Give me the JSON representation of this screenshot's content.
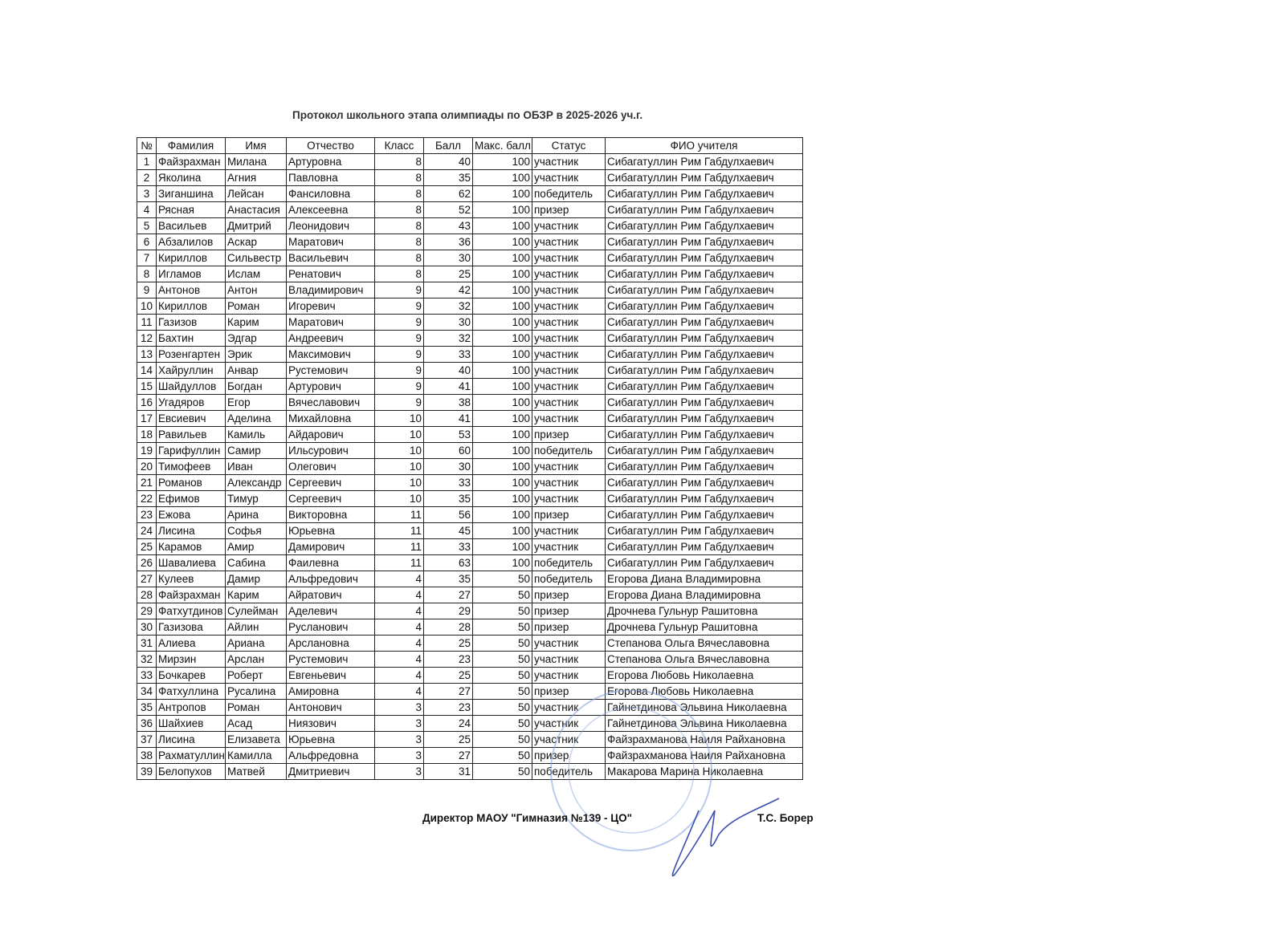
{
  "title": "Протокол школьного этапа олимпиады по ОБЗР в 2025-2026 уч.г.",
  "table": {
    "header": [
      "№",
      "Фамилия",
      "Имя",
      "Отчество",
      "Класс",
      "Балл",
      "Макс. балл",
      "Статус",
      "ФИО учителя"
    ],
    "rows": [
      [
        1,
        "Файзрахман",
        "Милана",
        "Артуровна",
        8,
        40,
        100,
        "участник",
        "Сибагатуллин Рим Габдулхаевич"
      ],
      [
        2,
        "Яколина",
        "Агния",
        "Павловна",
        8,
        35,
        100,
        "участник",
        "Сибагатуллин Рим Габдулхаевич"
      ],
      [
        3,
        "Зиганшина",
        "Лейсан",
        "Фансиловна",
        8,
        62,
        100,
        "победитель",
        "Сибагатуллин Рим Габдулхаевич"
      ],
      [
        4,
        "Рясная",
        "Анастасия",
        "Алексеевна",
        8,
        52,
        100,
        "призер",
        "Сибагатуллин Рим Габдулхаевич"
      ],
      [
        5,
        "Васильев",
        "Дмитрий",
        "Леонидович",
        8,
        43,
        100,
        "участник",
        "Сибагатуллин Рим Габдулхаевич"
      ],
      [
        6,
        "Абзалилов",
        "Аскар",
        "Маратович",
        8,
        36,
        100,
        "участник",
        "Сибагатуллин Рим Габдулхаевич"
      ],
      [
        7,
        "Кириллов",
        "Сильвестр",
        "Васильевич",
        8,
        30,
        100,
        "участник",
        "Сибагатуллин Рим Габдулхаевич"
      ],
      [
        8,
        "Игламов",
        "Ислам",
        "Ренатович",
        8,
        25,
        100,
        "участник",
        "Сибагатуллин Рим Габдулхаевич"
      ],
      [
        9,
        "Антонов",
        "Антон",
        "Владимирович",
        9,
        42,
        100,
        "участник",
        "Сибагатуллин Рим Габдулхаевич"
      ],
      [
        10,
        "Кириллов",
        "Роман",
        "Игоревич",
        9,
        32,
        100,
        "участник",
        "Сибагатуллин Рим Габдулхаевич"
      ],
      [
        11,
        "Газизов",
        "Карим",
        "Маратович",
        9,
        30,
        100,
        "участник",
        "Сибагатуллин Рим Габдулхаевич"
      ],
      [
        12,
        "Бахтин",
        "Эдгар",
        "Андреевич",
        9,
        32,
        100,
        "участник",
        "Сибагатуллин Рим Габдулхаевич"
      ],
      [
        13,
        "Розенгартен",
        "Эрик",
        "Максимович",
        9,
        33,
        100,
        "участник",
        "Сибагатуллин Рим Габдулхаевич"
      ],
      [
        14,
        "Хайруллин",
        "Анвар",
        "Рустемович",
        9,
        40,
        100,
        "участник",
        "Сибагатуллин Рим Габдулхаевич"
      ],
      [
        15,
        "Шайдуллов",
        "Богдан",
        "Артурович",
        9,
        41,
        100,
        "участник",
        "Сибагатуллин Рим Габдулхаевич"
      ],
      [
        16,
        "Угадяров",
        "Егор",
        "Вячеславович",
        9,
        38,
        100,
        "участник",
        "Сибагатуллин Рим Габдулхаевич"
      ],
      [
        17,
        "Евсиевич",
        "Аделина",
        "Михайловна",
        10,
        41,
        100,
        "участник",
        "Сибагатуллин Рим Габдулхаевич"
      ],
      [
        18,
        "Равильев",
        "Камиль",
        "Айдарович",
        10,
        53,
        100,
        "призер",
        "Сибагатуллин Рим Габдулхаевич"
      ],
      [
        19,
        "Гарифуллин",
        "Самир",
        "Ильсурович",
        10,
        60,
        100,
        "победитель",
        "Сибагатуллин Рим Габдулхаевич"
      ],
      [
        20,
        "Тимофеев",
        "Иван",
        "Олегович",
        10,
        30,
        100,
        "участник",
        "Сибагатуллин Рим Габдулхаевич"
      ],
      [
        21,
        "Романов",
        "Александр",
        "Сергеевич",
        10,
        33,
        100,
        "участник",
        "Сибагатуллин Рим Габдулхаевич"
      ],
      [
        22,
        "Ефимов",
        "Тимур",
        "Сергеевич",
        10,
        35,
        100,
        "участник",
        "Сибагатуллин Рим Габдулхаевич"
      ],
      [
        23,
        "Ежова",
        "Арина",
        "Викторовна",
        11,
        56,
        100,
        "призер",
        "Сибагатуллин Рим Габдулхаевич"
      ],
      [
        24,
        "Лисина",
        "Софья",
        "Юрьевна",
        11,
        45,
        100,
        "участник",
        "Сибагатуллин Рим Габдулхаевич"
      ],
      [
        25,
        "Карамов",
        "Амир",
        "Дамирович",
        11,
        33,
        100,
        "участник",
        "Сибагатуллин Рим Габдулхаевич"
      ],
      [
        26,
        "Шавалиева",
        "Сабина",
        "Фаилевна",
        11,
        63,
        100,
        "победитель",
        "Сибагатуллин Рим Габдулхаевич"
      ],
      [
        27,
        "Кулеев",
        "Дамир",
        "Альфредович",
        4,
        35,
        50,
        "победитель",
        "Егорова Диана Владимировна"
      ],
      [
        28,
        "Файзрахман",
        "Карим",
        "Айратович",
        4,
        27,
        50,
        "призер",
        "Егорова Диана Владимировна"
      ],
      [
        29,
        "Фатхутдинов",
        "Сулейман",
        "Аделевич",
        4,
        29,
        50,
        "призер",
        "Дрочнева Гульнур Рашитовна"
      ],
      [
        30,
        "Газизова",
        "Айлин",
        "Русланович",
        4,
        28,
        50,
        "призер",
        "Дрочнева Гульнур Рашитовна"
      ],
      [
        31,
        "Алиева",
        "Ариана",
        "Арслановна",
        4,
        25,
        50,
        "участник",
        "Степанова Ольга Вячеславовна"
      ],
      [
        32,
        "Мирзин",
        "Арслан",
        "Рустемович",
        4,
        23,
        50,
        "участник",
        "Степанова Ольга Вячеславовна"
      ],
      [
        33,
        "Бочкарев",
        "Роберт",
        "Евгеньевич",
        4,
        25,
        50,
        "участник",
        "Егорова Любовь Николаевна"
      ],
      [
        34,
        "Фатхуллина",
        "Русалина",
        "Амировна",
        4,
        27,
        50,
        "призер",
        "Егорова Любовь Николаевна"
      ],
      [
        35,
        "Антропов",
        "Роман",
        "Антонович",
        3,
        23,
        50,
        "участник",
        "Гайнетдинова Эльвина Николаевна"
      ],
      [
        36,
        "Шайхиев",
        "Асад",
        "Ниязович",
        3,
        24,
        50,
        "участник",
        "Гайнетдинова Эльвина Николаевна"
      ],
      [
        37,
        "Лисина",
        "Елизавета",
        "Юрьевна",
        3,
        25,
        50,
        "участник",
        "Файзрахманова Наиля Райхановна"
      ],
      [
        38,
        "Рахматуллин",
        "Камилла",
        "Альфредовна",
        3,
        27,
        50,
        "призер",
        "Файзрахманова Наиля Райхановна"
      ],
      [
        39,
        "Белопухов",
        "Матвей",
        "Дмитриевич",
        3,
        31,
        50,
        "победитель",
        "Макарова Марина Николаевна"
      ]
    ]
  },
  "footer": {
    "position": "Директор МАОУ \"Гимназия №139 - ЦО\"",
    "signatory": "Т.С. Борер"
  }
}
